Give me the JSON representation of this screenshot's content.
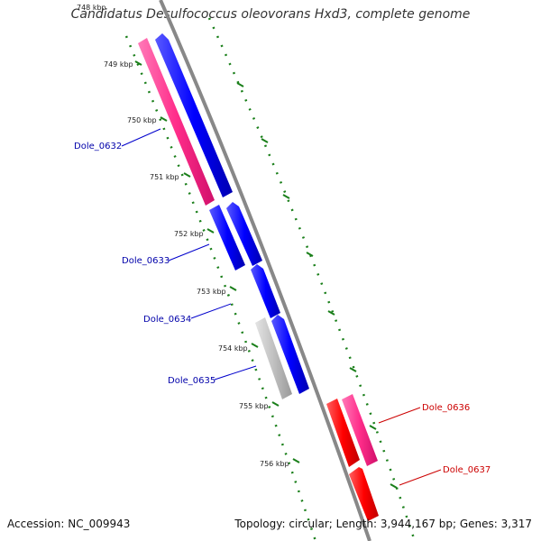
{
  "title": "Candidatus Desulfococcus oleovorans Hxd3, complete genome",
  "accession": "Accession: NC_009943",
  "summary": "Topology: circular; Length: 3,944,167 bp; Genes: 3,317",
  "ticks": [
    "748 kbp",
    "749 kbp",
    "750 kbp",
    "751 kbp",
    "752 kbp",
    "753 kbp",
    "754 kbp",
    "755 kbp",
    "756 kbp"
  ],
  "genes": [
    {
      "id": "Dole_0632",
      "color": "#0000aa"
    },
    {
      "id": "Dole_0633",
      "color": "#0000aa"
    },
    {
      "id": "Dole_0634",
      "color": "#0000aa"
    },
    {
      "id": "Dole_0635",
      "color": "#0000aa"
    },
    {
      "id": "Dole_0636",
      "color": "#cc0000"
    },
    {
      "id": "Dole_0637",
      "color": "#cc0000"
    }
  ],
  "colors": {
    "forward_cds": "#0000ff",
    "rrna_pink": "#ff2d8a",
    "reverse_cds": "#ff0000",
    "pseudo_grey": "#c0c0c0",
    "backbone": "#888888",
    "tick_green": "#1a7f1a"
  }
}
